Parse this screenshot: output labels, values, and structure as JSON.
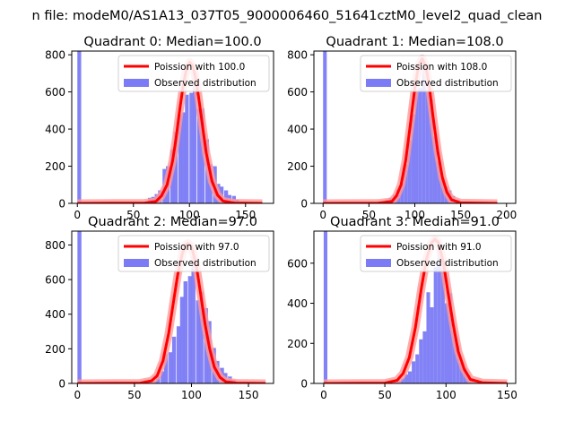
{
  "figure": {
    "suptitle": "n file: modeM0/AS1A13_037T05_9000006460_51641cztM0_level2_quad_clean"
  },
  "colors": {
    "histogram": "#7b7bf5",
    "poisson": "#ff0000",
    "poisson_glow": "#ff9a9a",
    "axis": "#000000",
    "background": "#ffffff"
  },
  "chart_data": [
    {
      "type": "bar",
      "title": "Quadrant 0: Median=100.0",
      "median": 100.0,
      "xlim": [
        -5,
        175
      ],
      "ylim": [
        0,
        820
      ],
      "xticks": [
        0,
        50,
        100,
        150
      ],
      "yticks": [
        0,
        200,
        400,
        600,
        800
      ],
      "legend": [
        "Poission with 100.0",
        "Observed distribution"
      ],
      "legend_position": "upper-right",
      "bin_width": 3.4,
      "hist_x": [
        0,
        30,
        35,
        50,
        55,
        63,
        66,
        69,
        72,
        76,
        79,
        83,
        86,
        90,
        93,
        96,
        100,
        103,
        107,
        110,
        114,
        117,
        121,
        124,
        127,
        131,
        134,
        138,
        141,
        145
      ],
      "hist_y": [
        820,
        3,
        6,
        4,
        3,
        30,
        35,
        50,
        70,
        185,
        200,
        290,
        385,
        480,
        490,
        585,
        595,
        705,
        510,
        510,
        345,
        210,
        200,
        105,
        90,
        70,
        45,
        40,
        20,
        10
      ],
      "poisson_x": [
        0,
        60,
        70,
        75,
        80,
        85,
        88,
        91,
        94,
        97,
        100,
        103,
        106,
        109,
        112,
        115,
        120,
        125,
        130,
        140,
        165
      ],
      "poisson_y": [
        0,
        2,
        10,
        40,
        100,
        230,
        350,
        490,
        620,
        715,
        760,
        740,
        660,
        535,
        400,
        270,
        120,
        45,
        12,
        2,
        0
      ]
    },
    {
      "type": "bar",
      "title": "Quadrant 1: Median=108.0",
      "median": 108.0,
      "xlim": [
        -10,
        210
      ],
      "ylim": [
        0,
        820
      ],
      "xticks": [
        0,
        50,
        100,
        150,
        200
      ],
      "yticks": [
        0,
        200,
        400,
        600,
        800
      ],
      "legend": [
        "Poission with 108.0",
        "Observed distribution"
      ],
      "legend_position": "upper-right",
      "bin_width": 4.0,
      "hist_x": [
        0,
        68,
        72,
        76,
        80,
        84,
        88,
        92,
        96,
        100,
        104,
        108,
        112,
        116,
        120,
        124,
        128,
        132,
        136,
        140,
        144,
        148
      ],
      "hist_y": [
        820,
        20,
        30,
        45,
        75,
        110,
        210,
        340,
        480,
        610,
        620,
        755,
        610,
        560,
        360,
        225,
        135,
        90,
        70,
        40,
        20,
        10
      ],
      "poisson_x": [
        0,
        60,
        75,
        80,
        85,
        90,
        95,
        100,
        104,
        108,
        112,
        116,
        120,
        125,
        130,
        135,
        140,
        150,
        190
      ],
      "poisson_y": [
        0,
        1,
        10,
        40,
        100,
        230,
        420,
        620,
        740,
        780,
        740,
        620,
        460,
        280,
        140,
        60,
        20,
        3,
        0
      ]
    },
    {
      "type": "bar",
      "title": "Quadrant 2: Median=97.0",
      "median": 97.0,
      "xlim": [
        -5,
        172
      ],
      "ylim": [
        0,
        880
      ],
      "xticks": [
        0,
        50,
        100,
        150
      ],
      "yticks": [
        0,
        200,
        400,
        600,
        800
      ],
      "legend": [
        "Poission with 97.0",
        "Observed distribution"
      ],
      "legend_position": "upper-right",
      "bin_width": 3.5,
      "hist_x": [
        0,
        32,
        52,
        62,
        66,
        69,
        73,
        76,
        80,
        83,
        87,
        90,
        93,
        97,
        100,
        104,
        107,
        111,
        114,
        118,
        121,
        125,
        128,
        132,
        135,
        139
      ],
      "hist_y": [
        880,
        5,
        5,
        10,
        15,
        40,
        70,
        170,
        180,
        270,
        330,
        500,
        590,
        620,
        735,
        480,
        530,
        435,
        360,
        205,
        130,
        90,
        60,
        40,
        20,
        10
      ],
      "poisson_x": [
        0,
        55,
        65,
        70,
        75,
        80,
        84,
        88,
        92,
        95,
        97,
        100,
        104,
        108,
        112,
        116,
        120,
        125,
        130,
        140,
        165
      ],
      "poisson_y": [
        0,
        2,
        15,
        45,
        130,
        290,
        460,
        630,
        750,
        800,
        810,
        790,
        690,
        520,
        340,
        200,
        95,
        35,
        10,
        2,
        0
      ]
    },
    {
      "type": "bar",
      "title": "Quadrant 3: Median=91.0",
      "median": 91.0,
      "xlim": [
        -8,
        157
      ],
      "ylim": [
        0,
        760
      ],
      "xticks": [
        0,
        50,
        100,
        150
      ],
      "yticks": [
        0,
        200,
        400,
        600
      ],
      "legend": [
        "Poission with 91.0",
        "Observed distribution"
      ],
      "legend_position": "upper-right",
      "bin_width": 3.0,
      "hist_x": [
        0,
        52,
        57,
        60,
        63,
        66,
        69,
        72,
        75,
        78,
        81,
        84,
        87,
        90,
        93,
        96,
        99,
        102,
        105,
        108,
        111,
        114,
        117,
        120,
        123,
        126
      ],
      "hist_y": [
        760,
        3,
        8,
        15,
        25,
        45,
        60,
        110,
        145,
        220,
        260,
        455,
        380,
        580,
        680,
        575,
        400,
        450,
        265,
        190,
        105,
        75,
        40,
        25,
        15,
        5
      ],
      "poisson_x": [
        0,
        50,
        60,
        65,
        70,
        75,
        80,
        84,
        88,
        91,
        94,
        98,
        102,
        106,
        110,
        115,
        120,
        130,
        150
      ],
      "poisson_y": [
        0,
        2,
        15,
        50,
        130,
        280,
        480,
        620,
        700,
        720,
        700,
        600,
        440,
        290,
        160,
        70,
        20,
        3,
        0
      ]
    }
  ]
}
